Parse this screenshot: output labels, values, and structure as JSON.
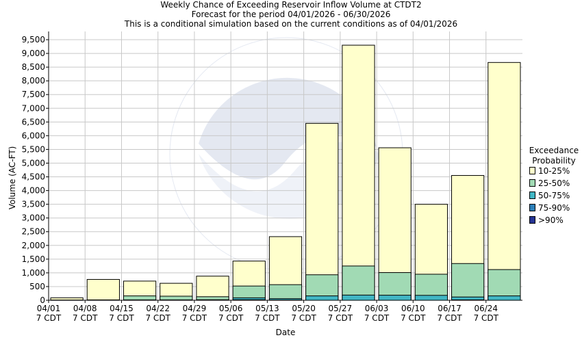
{
  "chart_data": {
    "type": "bar",
    "title": "Weekly Chance of Exceeding Reservoir Inflow Volume at CTDT2",
    "subtitle": "Forecast for the period 04/01/2026 - 06/30/2026",
    "subtitle2": "This is a conditional simulation based on the current conditions as of 04/01/2026",
    "xlabel": "Date",
    "ylabel": "Volume (AC-FT)",
    "ylim": [
      0,
      9800
    ],
    "yticks": [
      0,
      500,
      1000,
      1500,
      2000,
      2500,
      3000,
      3500,
      4000,
      4500,
      5000,
      5500,
      6000,
      6500,
      7000,
      7500,
      8000,
      8500,
      9000,
      9500
    ],
    "ytick_labels": [
      "0",
      "500",
      "1,000",
      "1,500",
      "2,000",
      "2,500",
      "3,000",
      "3,500",
      "4,000",
      "4,500",
      "5,000",
      "5,500",
      "6,000",
      "6,500",
      "7,000",
      "7,500",
      "8,000",
      "8,500",
      "9,000",
      "9,500"
    ],
    "tick_labels": [
      "04/01",
      "04/08",
      "04/15",
      "04/22",
      "04/29",
      "05/06",
      "05/13",
      "05/20",
      "05/27",
      "06/03",
      "06/10",
      "06/17",
      "06/24"
    ],
    "tick_sublabel": "7 CDT",
    "grid": true,
    "legend_title": [
      "Exceedance",
      "Probability"
    ],
    "legend_position": "right",
    "series": [
      {
        "name": "10-25%",
        "color": "#ffffcc",
        "values": [
          90,
          760,
          700,
          620,
          880,
          1430,
          2320,
          6450,
          9300,
          5560,
          3500,
          4550,
          8670
        ]
      },
      {
        "name": "25-50%",
        "color": "#a1dab4",
        "values": [
          10,
          15,
          160,
          150,
          130,
          520,
          570,
          930,
          1250,
          1010,
          950,
          1340,
          1120
        ]
      },
      {
        "name": "50-75%",
        "color": "#41b6c4",
        "values": [
          5,
          10,
          15,
          15,
          20,
          90,
          60,
          160,
          190,
          185,
          180,
          120,
          160
        ]
      },
      {
        "name": "75-90%",
        "color": "#2c7fb8",
        "values": [
          0,
          0,
          0,
          0,
          0,
          20,
          10,
          0,
          0,
          0,
          0,
          15,
          0
        ]
      },
      {
        "name": ">90%",
        "color": "#253494",
        "values": [
          0,
          0,
          0,
          0,
          0,
          0,
          0,
          0,
          0,
          0,
          0,
          0,
          0
        ]
      }
    ]
  }
}
